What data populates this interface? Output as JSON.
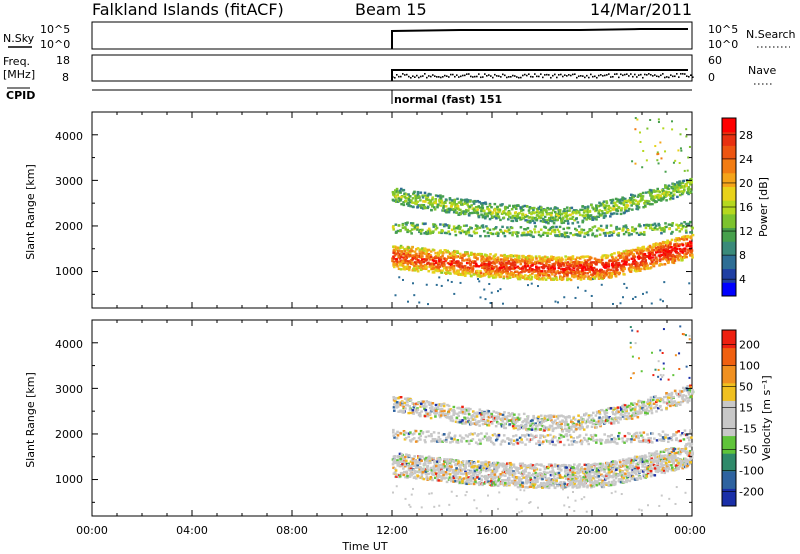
{
  "header": {
    "station": "Falkland Islands (fitACF)",
    "beam": "Beam 15",
    "date": "14/Mar/2011"
  },
  "strip": {
    "nsky_label": "N.Sky",
    "nsky_ticks": [
      "10^5",
      "10^0"
    ],
    "nsearch_label": "N.Search",
    "nsearch_ticks": [
      "10^5",
      "10^0"
    ],
    "freq_label": "Freq.",
    "freq_unit": "[MHz]",
    "freq_ticks": [
      "18",
      "8"
    ],
    "nave_label": "Nave",
    "nave_ticks": [
      "60",
      "0"
    ],
    "cpid_label": "CPID",
    "cpid_value": "normal (fast) 151"
  },
  "chart_data": [
    {
      "type": "heatmap",
      "name": "power",
      "ylabel": "Slant Range [km]",
      "yticks": [
        "4000",
        "3000",
        "2000",
        "1000"
      ],
      "ylim": [
        200,
        4500
      ],
      "xlim": [
        0,
        24
      ],
      "colorbar_label": "Power [dB]",
      "colorbar_ticks": [
        "28",
        "24",
        "20",
        "16",
        "12",
        "8",
        "4"
      ],
      "colorbar_colors": [
        "#0000ff",
        "#1f3fa3",
        "#2e6e95",
        "#3a8a7a",
        "#46a04c",
        "#7cc32e",
        "#b5d81e",
        "#e8d21a",
        "#f5a419",
        "#f27c12",
        "#ee5510",
        "#e83010",
        "#ff0000"
      ]
    },
    {
      "type": "heatmap",
      "name": "velocity",
      "ylabel": "Slant Range [km]",
      "yticks": [
        "4000",
        "3000",
        "2000",
        "1000"
      ],
      "ylim": [
        200,
        4500
      ],
      "xlim": [
        0,
        24
      ],
      "colorbar_label": "Velocity [m s⁻¹]",
      "colorbar_ticks": [
        "200",
        "100",
        "50",
        "15",
        "-15",
        "-50",
        "-100",
        "-200"
      ],
      "colorbar_colors": [
        "#1a2fa8",
        "#2e63a0",
        "#2f8a6a",
        "#5fc43a",
        "#c8c8c8",
        "#c8c8c8",
        "#f0c020",
        "#f09020",
        "#f06010",
        "#ee2010"
      ]
    }
  ],
  "xaxis": {
    "ticks": [
      "00:00",
      "04:00",
      "08:00",
      "12:00",
      "16:00",
      "20:00",
      "00:00"
    ],
    "label": "Time UT"
  }
}
